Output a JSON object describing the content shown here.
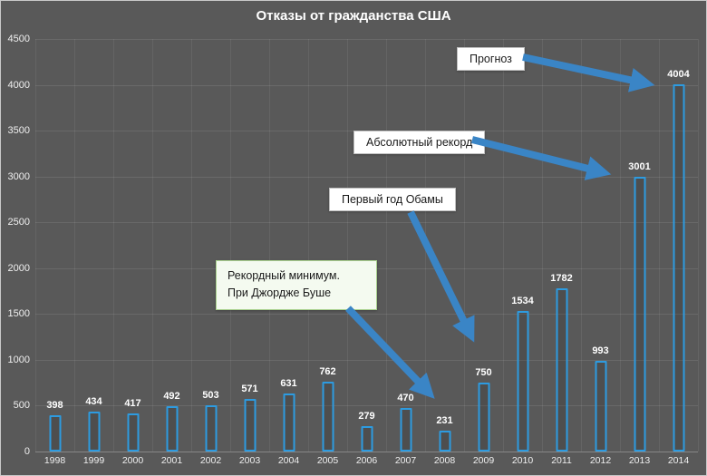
{
  "chart_data": {
    "type": "bar",
    "title": "Отказы от гражданства США",
    "categories": [
      "1998",
      "1999",
      "2000",
      "2001",
      "2002",
      "2003",
      "2004",
      "2005",
      "2006",
      "2007",
      "2008",
      "2009",
      "2010",
      "2011",
      "2012",
      "2013",
      "2014"
    ],
    "values": [
      398,
      434,
      417,
      492,
      503,
      571,
      631,
      762,
      279,
      470,
      231,
      750,
      1534,
      1782,
      993,
      3001,
      4004
    ],
    "xlabel": "",
    "ylabel": "",
    "ylim": [
      0,
      4500
    ],
    "ytick_step": 500,
    "grid": true,
    "legend": "none",
    "annotations": [
      {
        "label": "Прогноз",
        "target_year": "2014"
      },
      {
        "label": "Абсолютный рекорд",
        "target_year": "2013"
      },
      {
        "label": "Первый год Обамы",
        "target_year": "2009"
      },
      {
        "label": "Рекордный минимум.",
        "label2": "При Джордже Буше",
        "target_year": "2008"
      }
    ],
    "colors": {
      "background": "#595959",
      "bar_border": "#2d9be0",
      "arrow": "#3a85c6",
      "text": "#ffffff",
      "annotation_bg": "#ffffff",
      "annotation_minimum_bg": "#f4faf0"
    }
  }
}
